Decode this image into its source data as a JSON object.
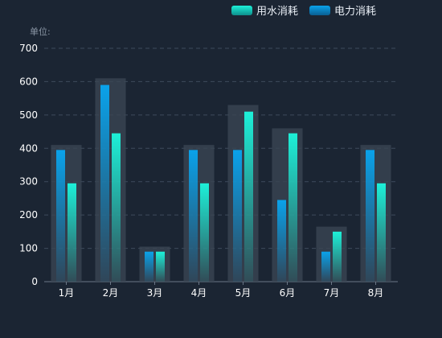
{
  "unit_label": "单位:",
  "colors": {
    "background": "#1b2533",
    "grid": "#3e4b5c",
    "axis_text": "#ffffff",
    "band": "#3a4553",
    "water_top": "#1df0d8",
    "power_top": "#0aa2ea"
  },
  "chart_data": {
    "type": "bar",
    "title": "",
    "xlabel": "",
    "ylabel": "",
    "ylim": [
      0,
      700
    ],
    "yticks": [
      0,
      100,
      200,
      300,
      400,
      500,
      600,
      700
    ],
    "grid": true,
    "legend_position": "top-right",
    "categories": [
      "1月",
      "2月",
      "3月",
      "4月",
      "5月",
      "6月",
      "7月",
      "8月"
    ],
    "series": [
      {
        "name": "电力消耗",
        "values": [
          395,
          590,
          90,
          395,
          395,
          245,
          90,
          395
        ],
        "color": "#0aa2ea"
      },
      {
        "name": "用水消耗",
        "values": [
          295,
          445,
          90,
          295,
          510,
          445,
          150,
          295
        ],
        "color": "#1df0d8"
      }
    ],
    "background_bands": [
      410,
      610,
      105,
      410,
      530,
      460,
      165,
      410
    ]
  }
}
